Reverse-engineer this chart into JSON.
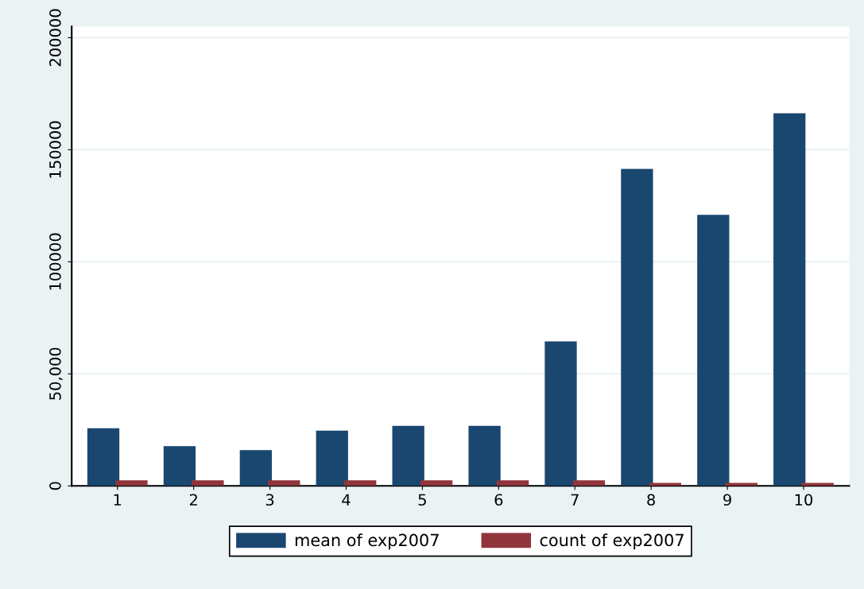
{
  "chart_data": {
    "type": "bar",
    "categories": [
      "1",
      "2",
      "3",
      "4",
      "5",
      "6",
      "7",
      "8",
      "9",
      "10"
    ],
    "series": [
      {
        "name": "mean of exp2007",
        "color": "#1a476f",
        "values": [
          25700,
          17800,
          16000,
          24700,
          26800,
          26800,
          64500,
          141500,
          121000,
          166300
        ]
      },
      {
        "name": "count of exp2007",
        "color": "#90353b",
        "values": [
          2500,
          2500,
          2500,
          2500,
          2500,
          2500,
          2500,
          1400,
          1400,
          1400
        ]
      }
    ],
    "ylim": [
      0,
      205000
    ],
    "yticks": [
      0,
      {
        "value": 50000,
        "label": "50,000"
      },
      100000,
      150000,
      200000
    ],
    "grid": "y",
    "legend": "bottom"
  }
}
